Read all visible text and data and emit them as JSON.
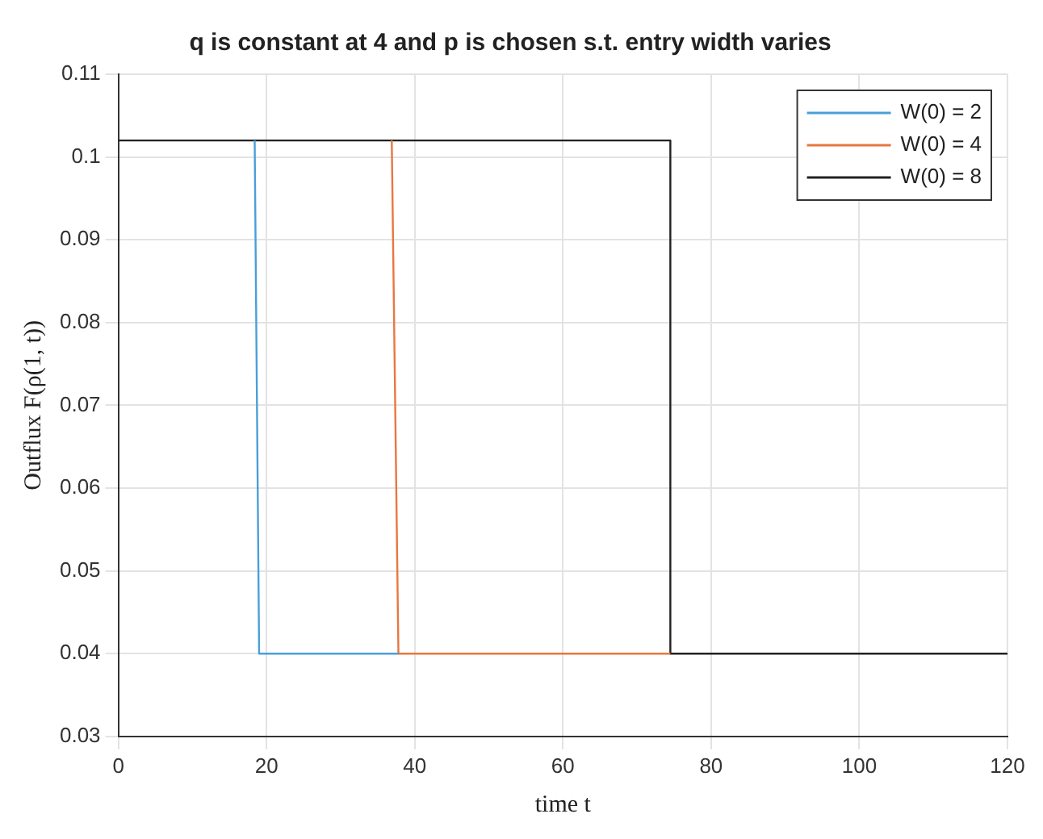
{
  "chart_data": {
    "type": "line",
    "title": "q is constant at 4 and p is chosen s.t. entry width varies",
    "xlabel": "time t",
    "ylabel": "Outflux F(ρ(1, t))",
    "xlim": [
      0,
      120
    ],
    "xticks": [
      0,
      20,
      40,
      60,
      80,
      100,
      120
    ],
    "ylim": [
      0.03,
      0.11
    ],
    "yticks": [
      0.03,
      0.04,
      0.05,
      0.06,
      0.07,
      0.08,
      0.09,
      0.1,
      0.11
    ],
    "grid": true,
    "legend": "top right",
    "marker": "none",
    "line_style": "solid",
    "series": [
      {
        "name": "W(0) = 2",
        "color": "#4a9fd8",
        "x": [
          18.4,
          19,
          37.8
        ],
        "values": [
          0.102,
          0.04,
          0.04
        ]
      },
      {
        "name": "W(0) = 4",
        "color": "#e8773f",
        "x": [
          36.9,
          37.8,
          74.5
        ],
        "values": [
          0.102,
          0.04,
          0.04
        ]
      },
      {
        "name": "W(0) = 8",
        "color": "#222222",
        "x": [
          0,
          74.5,
          74.5,
          120
        ],
        "values": [
          0.102,
          0.102,
          0.04,
          0.04
        ]
      }
    ]
  }
}
